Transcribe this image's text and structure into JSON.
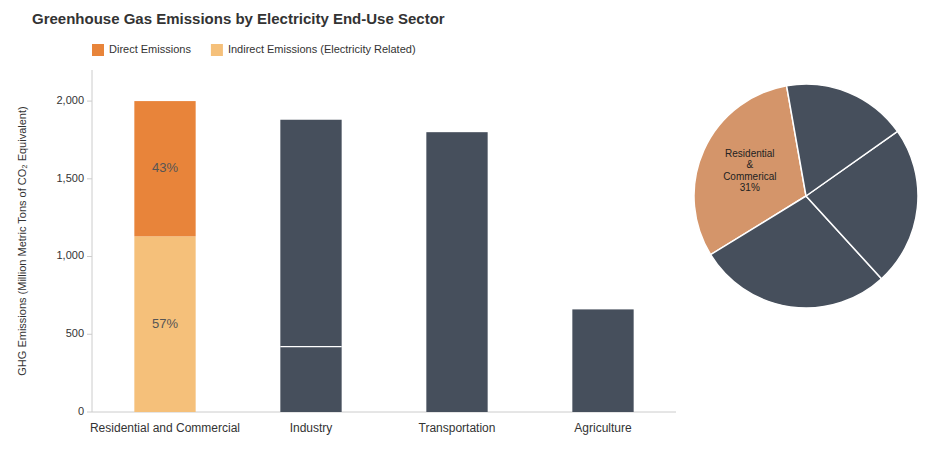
{
  "chart_data": [
    {
      "type": "bar",
      "title": "Greenhouse Gas Emissions by Electricity End-Use Sector",
      "ylabel": "GHG Emissions (Million Metric Tons of CO₂ Equivalent)",
      "categories": [
        "Residential and Commercial",
        "Industry",
        "Transportation",
        "Agriculture"
      ],
      "series": [
        {
          "name": "Indirect Emissions (Electricity Related)",
          "color": "#F5C07A",
          "values": [
            1130,
            0,
            0,
            0
          ]
        },
        {
          "name": "Direct Emissions",
          "color": "#E8843A",
          "colors": [
            "#E8843A",
            "#464F5C",
            "#464F5C",
            "#464F5C"
          ],
          "values": [
            870,
            1880,
            1800,
            660
          ]
        }
      ],
      "stacked": true,
      "divider_values": [
        null,
        420,
        null,
        null
      ],
      "annotations": [
        {
          "text": "57%",
          "series": 0,
          "index": 0
        },
        {
          "text": "43%",
          "series": 1,
          "index": 0
        }
      ],
      "ylim": [
        0,
        2200
      ],
      "yticks": [
        0,
        500,
        {
          "value": 1000,
          "label": "1,000"
        },
        {
          "value": 1500,
          "label": "1,500"
        },
        {
          "value": 2000,
          "label": "2,000"
        }
      ],
      "grid": false,
      "legend": "upper left"
    },
    {
      "type": "pie",
      "values": [
        31,
        28,
        23,
        18
      ],
      "colors": [
        "#D4956A",
        "#464F5C",
        "#464F5C",
        "#464F5C"
      ],
      "value_labels": [
        "Residential\n&\nCommerical\n31%",
        null,
        null,
        null
      ]
    }
  ]
}
